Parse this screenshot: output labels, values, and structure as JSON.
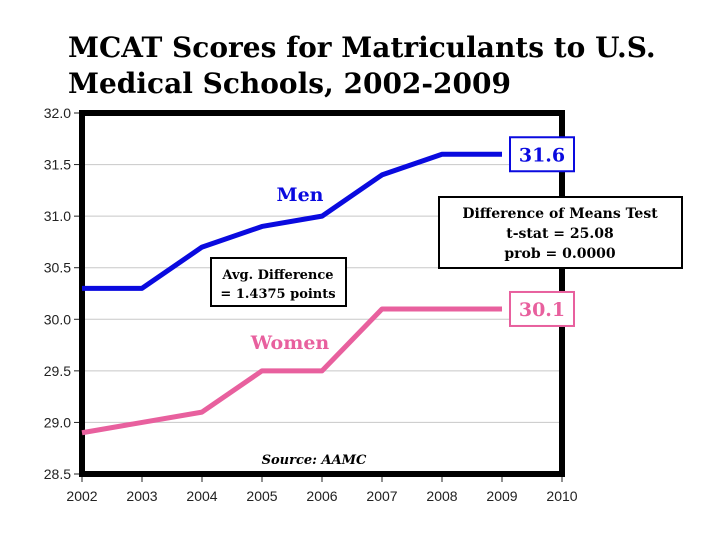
{
  "chart_data": {
    "type": "line",
    "title": "MCAT Scores for Matriculants to U.S. Medical Schools, 2002-2009",
    "x": [
      2002,
      2003,
      2004,
      2005,
      2006,
      2007,
      2008,
      2009
    ],
    "xlim": [
      2002,
      2010
    ],
    "ylim": [
      28.5,
      32.0
    ],
    "xticks": [
      "2002",
      "2003",
      "2004",
      "2005",
      "2006",
      "2007",
      "2008",
      "2009",
      "2010"
    ],
    "yticks": [
      "28.5",
      "29.0",
      "29.5",
      "30.0",
      "30.5",
      "31.0",
      "31.5",
      "32.0"
    ],
    "grid": true,
    "series": [
      {
        "name": "Men",
        "color": "#0a0adf",
        "values": [
          30.3,
          30.3,
          30.7,
          30.9,
          31.0,
          31.4,
          31.6,
          31.6
        ],
        "end_label": "31.6"
      },
      {
        "name": "Women",
        "color": "#e8609e",
        "values": [
          28.9,
          29.0,
          29.1,
          29.5,
          29.5,
          30.1,
          30.1,
          30.1
        ],
        "end_label": "30.1"
      }
    ],
    "annotations": {
      "avg_diff": [
        "Avg. Difference",
        "= 1.4375 points"
      ],
      "test": [
        "Difference of Means Test",
        "t-stat = 25.08",
        "prob = 0.0000"
      ],
      "source": "Source: AAMC"
    }
  }
}
